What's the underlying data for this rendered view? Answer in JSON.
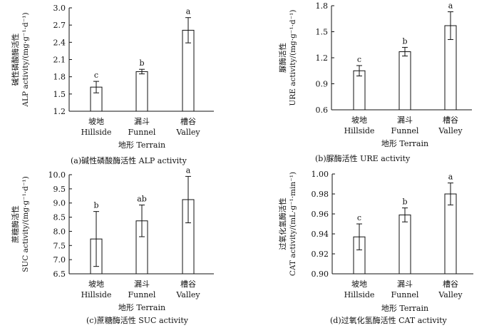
{
  "chart_data": [
    {
      "type": "bar",
      "categories": [
        "坡地 Hillside",
        "漏斗 Funnel",
        "槽谷 Valley"
      ],
      "category_labels": [
        {
          "cn": "坡地",
          "en": "Hillside"
        },
        {
          "cn": "漏斗",
          "en": "Funnel"
        },
        {
          "cn": "槽谷",
          "en": "Valley"
        }
      ],
      "values": [
        1.62,
        1.89,
        2.61
      ],
      "errors": [
        0.1,
        0.04,
        0.22
      ],
      "significance": [
        "c",
        "b",
        "a"
      ],
      "ylim": [
        1.2,
        3.0
      ],
      "yticks": [
        "1.2",
        "1.5",
        "1.8",
        "2.1",
        "2.4",
        "2.7",
        "3.0"
      ],
      "ylabel_cn": "碱性磷酸酶活性",
      "ylabel_en": "ALP activity/(mg·g⁻¹·d⁻¹)",
      "xlabel": "地形 Terrain",
      "caption": "(a)碱性磷酸酶活性 ALP activity"
    },
    {
      "type": "bar",
      "categories": [
        "坡地 Hillside",
        "漏斗 Funnel",
        "槽谷 Valley"
      ],
      "category_labels": [
        {
          "cn": "坡地",
          "en": "Hillside"
        },
        {
          "cn": "漏斗",
          "en": "Funnel"
        },
        {
          "cn": "槽谷",
          "en": "Valley"
        }
      ],
      "values": [
        1.05,
        1.27,
        1.57
      ],
      "errors": [
        0.06,
        0.05,
        0.16
      ],
      "significance": [
        "c",
        "b",
        "a"
      ],
      "ylim": [
        0.6,
        1.8
      ],
      "yticks": [
        "0.6",
        "0.9",
        "1.2",
        "1.5",
        "1.8"
      ],
      "ylabel_cn": "脲酶活性",
      "ylabel_en": "URE activity/(mg·g⁻¹·d⁻¹)",
      "xlabel": "地形 Terrain",
      "caption": "(b)脲酶活性 URE activity"
    },
    {
      "type": "bar",
      "categories": [
        "坡地 Hillside",
        "漏斗 Funnel",
        "槽谷 Valley"
      ],
      "category_labels": [
        {
          "cn": "坡地",
          "en": "Hillside"
        },
        {
          "cn": "漏斗",
          "en": "Funnel"
        },
        {
          "cn": "槽谷",
          "en": "Valley"
        }
      ],
      "values": [
        7.73,
        8.37,
        9.12
      ],
      "errors": [
        0.97,
        0.56,
        0.82
      ],
      "significance": [
        "b",
        "ab",
        "a"
      ],
      "ylim": [
        6.5,
        10.0
      ],
      "yticks": [
        "6.5",
        "7.0",
        "7.5",
        "8.0",
        "8.5",
        "9.0",
        "9.5",
        "10.0"
      ],
      "ylabel_cn": "蔗糖酶活性",
      "ylabel_en": "SUC activity/(mg·g⁻¹·d⁻¹)",
      "xlabel": "地形 Terrain",
      "caption": "(c)蔗糖酶活性 SUC activity"
    },
    {
      "type": "bar",
      "categories": [
        "坡地 Hillside",
        "漏斗 Funnel",
        "槽谷 Valley"
      ],
      "category_labels": [
        {
          "cn": "坡地",
          "en": "Hillside"
        },
        {
          "cn": "漏斗",
          "en": "Funnel"
        },
        {
          "cn": "槽谷",
          "en": "Valley"
        }
      ],
      "values": [
        0.937,
        0.959,
        0.98
      ],
      "errors": [
        0.013,
        0.007,
        0.011
      ],
      "significance": [
        "c",
        "b",
        "a"
      ],
      "ylim": [
        0.9,
        1.0
      ],
      "yticks": [
        "0.90",
        "0.92",
        "0.94",
        "0.96",
        "0.98",
        "1.00"
      ],
      "ylabel_cn": "过氧化氢酶活性",
      "ylabel_en": "CAT activity/(mL·g⁻¹·min⁻¹)",
      "xlabel": "地形 Terrain",
      "caption": "(d)过氧化氢酶活性 CAT activity"
    }
  ]
}
